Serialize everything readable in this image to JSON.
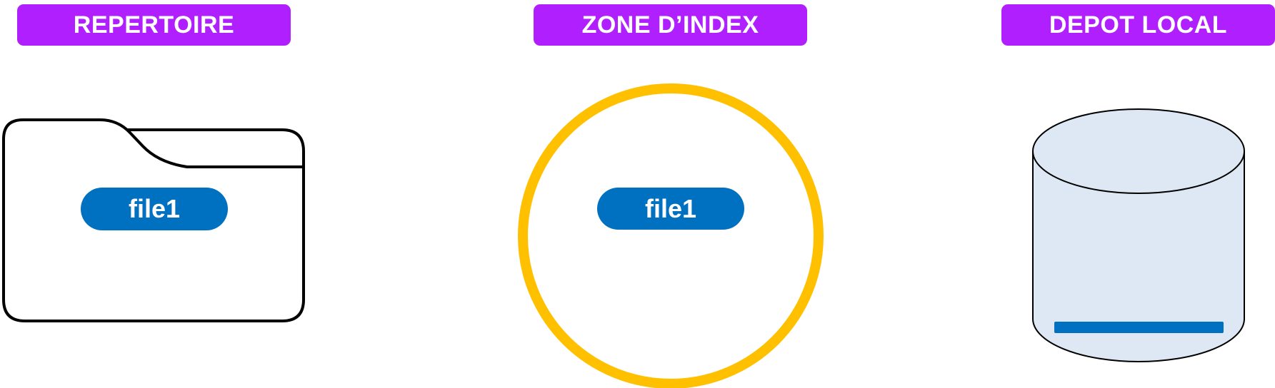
{
  "colors": {
    "header_bg": "#B020FF",
    "pill_bg": "#0070C0",
    "ring": "#FFC000",
    "cylinder_fill": "#DDE8F4",
    "bar": "#0070C0",
    "outline": "#000000"
  },
  "columns": [
    {
      "title": "REPERTOIRE",
      "icon": "folder-icon",
      "file": "file1"
    },
    {
      "title": "ZONE D’INDEX",
      "icon": "circle-icon",
      "file": "file1"
    },
    {
      "title": "DEPOT LOCAL",
      "icon": "database-icon"
    }
  ]
}
